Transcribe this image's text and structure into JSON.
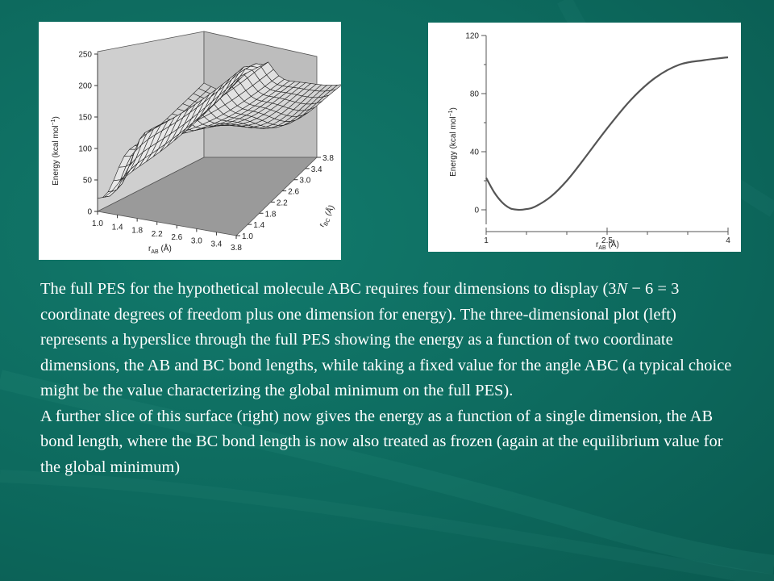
{
  "theme": {
    "background": "#0d6a5e",
    "text_color": "#ffffff",
    "panel_bg": "#ffffff",
    "curve_color": "#555555"
  },
  "chart_data": [
    {
      "type": "surface",
      "title": "",
      "xlabel": "r",
      "xlabel_sub": "AB",
      "xlabel_unit": " (Å)",
      "ylabel": "r",
      "ylabel_sub": "BC",
      "ylabel_unit": " (Å)",
      "zlabel": "Energy (kcal mol",
      "zlabel_sup": "−1",
      "zlabel_close": ")",
      "xlim": [
        1.0,
        3.8
      ],
      "ylim": [
        1.0,
        3.8
      ],
      "zlim": [
        0,
        250
      ],
      "x_ticks": [
        "1.0",
        "1.4",
        "1.8",
        "2.2",
        "2.6",
        "3.0",
        "3.4",
        "3.8"
      ],
      "y_ticks": [
        "1.0",
        "1.4",
        "1.8",
        "2.2",
        "2.6",
        "3.0",
        "3.4",
        "3.8"
      ],
      "z_ticks": [
        "0",
        "50",
        "100",
        "150",
        "200",
        "250"
      ]
    },
    {
      "type": "line",
      "title": "",
      "xlabel": "r",
      "xlabel_sub": "AB",
      "xlabel_unit": " (Å)",
      "ylabel": "Energy (kcal mol",
      "ylabel_sup": "−1",
      "ylabel_close": ")",
      "xlim": [
        1,
        4
      ],
      "ylim": [
        -10,
        120
      ],
      "x_ticks": [
        "1",
        "2.5",
        "4"
      ],
      "y_ticks": [
        "0",
        "40",
        "80",
        "120"
      ],
      "series": [
        {
          "x": [
            1.0,
            1.1,
            1.2,
            1.3,
            1.4,
            1.5,
            1.6,
            1.8,
            2.0,
            2.2,
            2.5,
            2.8,
            3.1,
            3.4,
            3.7,
            4.0
          ],
          "y": [
            22,
            12,
            5,
            1,
            0,
            0.5,
            2,
            9,
            20,
            34,
            56,
            76,
            91,
            100,
            103,
            105
          ]
        }
      ]
    }
  ],
  "caption": {
    "p1_a": "The full PES for the hypothetical molecule ABC requires four dimensions to display (3",
    "p1_n": "N",
    "p1_b": " − 6 = 3 coordinate degrees of freedom plus one dimension for energy). The three-dimensional plot (left) represents a hyperslice through the full PES showing the energy as a function of two coordinate dimensions, the AB and BC bond lengths, while taking a fixed value for the angle ABC (a typical choice might be the value characterizing the global minimum on the full PES).",
    "p2": "A further slice of this surface (right) now gives the energy as a function of a single dimension, the AB bond length, where the BC bond length is now also treated as frozen (again at the equilibrium value for the global minimum)"
  }
}
